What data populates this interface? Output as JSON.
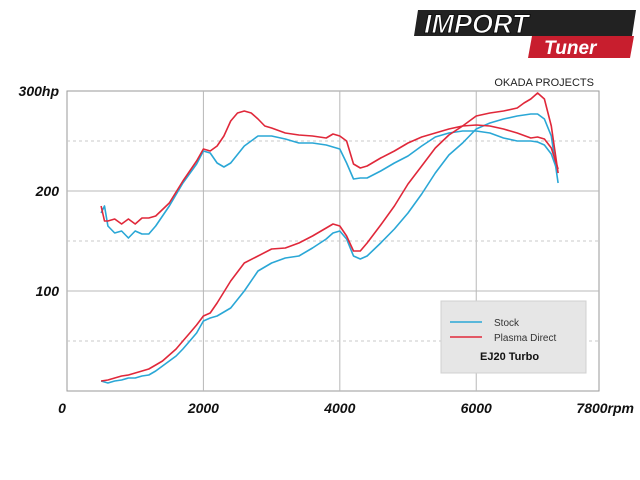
{
  "logo": {
    "word1": "IMPORT",
    "word2": "Tuner"
  },
  "note": "OKADA PROJECTS",
  "legend_title": "EJ20 Turbo",
  "colors": {
    "stock": "#2aa7d6",
    "plasma": "#e0283a",
    "grid_solid": "#b8b8b8",
    "grid_dashed": "#c8c8c8",
    "legend_bg": "#e6e6e6"
  },
  "chart_data": {
    "type": "line",
    "x_unit": "rpm",
    "y_unit": "hp",
    "xlim": [
      0,
      7800
    ],
    "ylim": [
      0,
      300
    ],
    "x_ticks": [
      {
        "value": 0,
        "label": "0"
      },
      {
        "value": 2000,
        "label": "2000"
      },
      {
        "value": 4000,
        "label": "4000"
      },
      {
        "value": 6000,
        "label": "6000"
      },
      {
        "value": 7800,
        "label": "7800rpm"
      }
    ],
    "y_ticks": [
      {
        "value": 100,
        "label": "100"
      },
      {
        "value": 200,
        "label": "200"
      },
      {
        "value": 300,
        "label": "300hp"
      }
    ],
    "grid": true,
    "legend_position": "bottom-right",
    "series": [
      {
        "name": "Stock",
        "color": "#2aa7d6",
        "curves": [
          {
            "kind": "upper",
            "x": [
              500,
              550,
              600,
              700,
              800,
              900,
              1000,
              1100,
              1200,
              1300,
              1500,
              1700,
              1900,
              2000,
              2100,
              2200,
              2300,
              2400,
              2600,
              2800,
              3000,
              3200,
              3400,
              3600,
              3800,
              3900,
              4000,
              4100,
              4200,
              4300,
              4400,
              4600,
              4800,
              5000,
              5200,
              5400,
              5600,
              5800,
              6000,
              6200,
              6400,
              6600,
              6800,
              6900,
              7000,
              7100,
              7200
            ],
            "y": [
              178,
              185,
              165,
              158,
              160,
              153,
              160,
              157,
              157,
              165,
              185,
              208,
              227,
              240,
              238,
              228,
              224,
              228,
              245,
              255,
              255,
              252,
              248,
              248,
              246,
              244,
              242,
              228,
              212,
              213,
              213,
              220,
              228,
              235,
              245,
              254,
              258,
              260,
              260,
              258,
              253,
              250,
              250,
              249,
              246,
              237,
              218
            ]
          },
          {
            "kind": "lower",
            "x": [
              500,
              600,
              700,
              800,
              900,
              1000,
              1100,
              1200,
              1300,
              1400,
              1500,
              1600,
              1700,
              1800,
              1900,
              2000,
              2100,
              2200,
              2400,
              2600,
              2800,
              3000,
              3200,
              3400,
              3600,
              3800,
              3900,
              4000,
              4100,
              4200,
              4300,
              4400,
              4600,
              4800,
              5000,
              5200,
              5400,
              5600,
              5800,
              6000,
              6200,
              6400,
              6600,
              6800,
              6900,
              7000,
              7100,
              7200
            ],
            "y": [
              10,
              8,
              10,
              11,
              13,
              13,
              15,
              16,
              20,
              25,
              30,
              35,
              42,
              50,
              58,
              70,
              73,
              75,
              83,
              100,
              120,
              128,
              133,
              135,
              143,
              152,
              158,
              160,
              152,
              135,
              132,
              135,
              148,
              162,
              178,
              197,
              218,
              236,
              248,
              262,
              268,
              272,
              275,
              277,
              277,
              272,
              255,
              208
            ]
          }
        ]
      },
      {
        "name": "Plasma Direct",
        "color": "#e0283a",
        "curves": [
          {
            "kind": "upper",
            "x": [
              500,
              550,
              600,
              700,
              800,
              900,
              1000,
              1100,
              1200,
              1300,
              1500,
              1700,
              1900,
              2000,
              2100,
              2200,
              2300,
              2400,
              2500,
              2600,
              2700,
              2800,
              2900,
              3000,
              3200,
              3400,
              3600,
              3800,
              3900,
              4000,
              4100,
              4200,
              4300,
              4400,
              4600,
              4800,
              5000,
              5200,
              5400,
              5600,
              5800,
              6000,
              6200,
              6400,
              6600,
              6800,
              6900,
              7000,
              7100,
              7200
            ],
            "y": [
              185,
              170,
              170,
              172,
              167,
              172,
              167,
              173,
              173,
              175,
              188,
              210,
              230,
              242,
              240,
              245,
              255,
              270,
              278,
              280,
              278,
              272,
              265,
              263,
              258,
              256,
              255,
              253,
              257,
              255,
              250,
              227,
              223,
              225,
              233,
              240,
              248,
              254,
              258,
              262,
              265,
              266,
              265,
              262,
              258,
              253,
              254,
              252,
              243,
              222
            ]
          },
          {
            "kind": "lower",
            "x": [
              500,
              600,
              700,
              800,
              900,
              1000,
              1100,
              1200,
              1300,
              1400,
              1500,
              1600,
              1700,
              1800,
              1900,
              2000,
              2100,
              2200,
              2400,
              2600,
              2800,
              3000,
              3200,
              3400,
              3600,
              3800,
              3900,
              4000,
              4100,
              4200,
              4300,
              4400,
              4600,
              4800,
              5000,
              5200,
              5400,
              5600,
              5800,
              6000,
              6200,
              6400,
              6600,
              6700,
              6800,
              6900,
              7000,
              7100,
              7200
            ],
            "y": [
              10,
              11,
              13,
              15,
              16,
              18,
              20,
              22,
              26,
              30,
              36,
              42,
              50,
              58,
              66,
              75,
              78,
              88,
              110,
              128,
              135,
              142,
              143,
              148,
              155,
              163,
              167,
              165,
              155,
              140,
              140,
              148,
              166,
              185,
              207,
              225,
              243,
              256,
              265,
              275,
              278,
              280,
              283,
              288,
              292,
              298,
              292,
              265,
              218
            ]
          }
        ]
      }
    ]
  }
}
